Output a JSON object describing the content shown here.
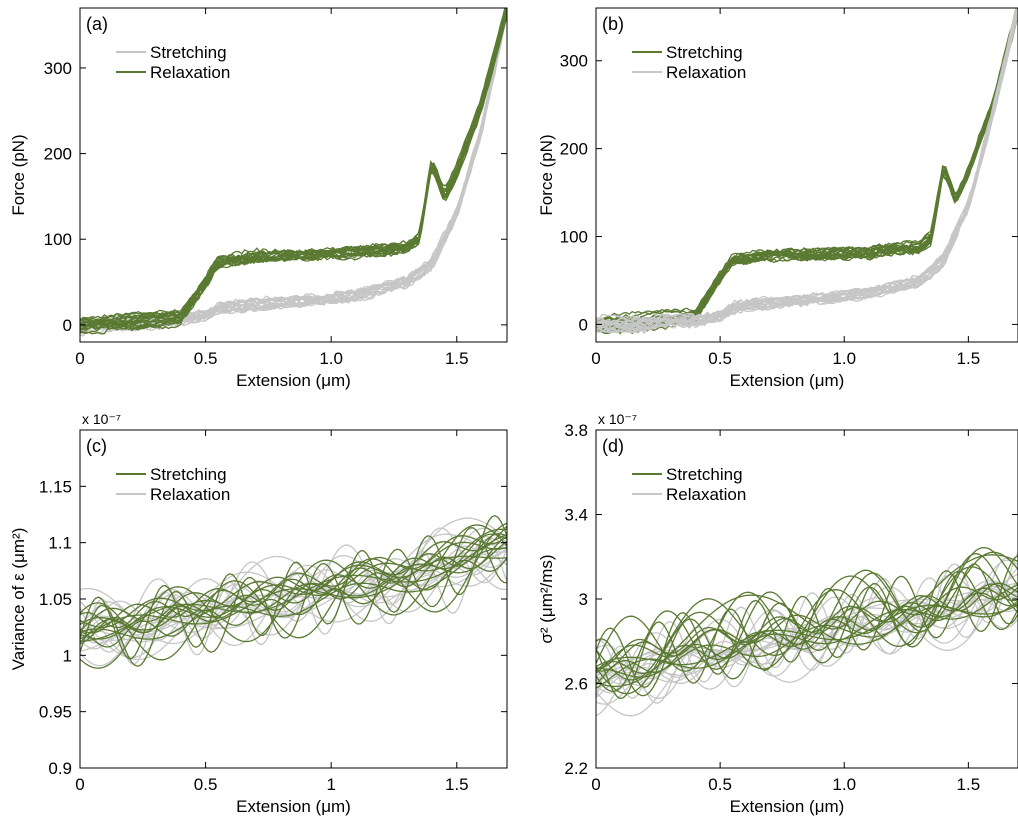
{
  "colors": {
    "green": "#5a7a32",
    "gray": "#c6c6c6",
    "axis": "#000000"
  },
  "chart_data": [
    {
      "panel": "(a)",
      "type": "line",
      "xlabel": "Extension (μm)",
      "ylabel": "Force (pN)",
      "xlim": [
        0,
        1.7
      ],
      "ylim": [
        -20,
        370
      ],
      "xticks": [
        0,
        0.5,
        1.0,
        1.5
      ],
      "xtick_labels": [
        "0",
        "0.5",
        "1.0",
        "1.5"
      ],
      "yticks": [
        0,
        100,
        200,
        300
      ],
      "ytick_labels": [
        "0",
        "100",
        "200",
        "300"
      ],
      "legend_position": "top-left",
      "series": [
        {
          "name": "Stretching",
          "color": "gray",
          "traces": 20,
          "front": false,
          "x": [
            0,
            0.2,
            0.4,
            0.5,
            0.55,
            0.7,
            0.9,
            1.1,
            1.3,
            1.4,
            1.5,
            1.6,
            1.7
          ],
          "y": [
            0,
            2,
            6,
            12,
            20,
            24,
            28,
            34,
            50,
            70,
            130,
            230,
            370
          ]
        },
        {
          "name": "Relaxation",
          "color": "green",
          "traces": 20,
          "front": true,
          "x": [
            0,
            0.2,
            0.4,
            0.5,
            0.55,
            0.7,
            0.9,
            1.1,
            1.3,
            1.35,
            1.4,
            1.45,
            1.5,
            1.6,
            1.7
          ],
          "y": [
            0,
            3,
            8,
            50,
            75,
            80,
            82,
            85,
            90,
            100,
            190,
            150,
            180,
            260,
            370
          ]
        }
      ]
    },
    {
      "panel": "(b)",
      "type": "line",
      "xlabel": "Extension (μm)",
      "ylabel": "Force (pN)",
      "xlim": [
        0,
        1.7
      ],
      "ylim": [
        -20,
        360
      ],
      "xticks": [
        0,
        0.5,
        1.0,
        1.5
      ],
      "xtick_labels": [
        "0",
        "0.5",
        "1.0",
        "1.5"
      ],
      "yticks": [
        0,
        100,
        200,
        300
      ],
      "ytick_labels": [
        "0",
        "100",
        "200",
        "300"
      ],
      "legend_position": "top-left",
      "series": [
        {
          "name": "Stretching",
          "color": "green",
          "traces": 20,
          "front": false,
          "x": [
            0,
            0.2,
            0.4,
            0.5,
            0.55,
            0.7,
            0.9,
            1.1,
            1.3,
            1.35,
            1.4,
            1.45,
            1.5,
            1.6,
            1.7
          ],
          "y": [
            0,
            3,
            10,
            55,
            75,
            78,
            80,
            82,
            88,
            100,
            180,
            140,
            170,
            250,
            360
          ]
        },
        {
          "name": "Relaxation",
          "color": "gray",
          "traces": 20,
          "front": true,
          "x": [
            0,
            0.2,
            0.4,
            0.5,
            0.55,
            0.7,
            0.9,
            1.1,
            1.3,
            1.4,
            1.5,
            1.6,
            1.7
          ],
          "y": [
            0,
            2,
            6,
            12,
            20,
            25,
            30,
            35,
            50,
            72,
            135,
            240,
            360
          ]
        }
      ]
    },
    {
      "panel": "(c)",
      "type": "line",
      "xlabel": "Extension (μm)",
      "ylabel": "Variance of ε (μm²)",
      "multiplier": "x 10⁻⁷",
      "xlim": [
        0,
        1.7
      ],
      "ylim": [
        0.9,
        1.2
      ],
      "xticks": [
        0,
        0.5,
        1,
        1.5
      ],
      "xtick_labels": [
        "0",
        "0.5",
        "1",
        "1.5"
      ],
      "yticks": [
        0.9,
        0.95,
        1,
        1.05,
        1.1,
        1.15
      ],
      "ytick_labels": [
        "0.9",
        "0.95",
        "1",
        "1.05",
        "1.1",
        "1.15"
      ],
      "legend_position": "top-left",
      "series": [
        {
          "name": "Stretching",
          "color": "green",
          "traces": 16,
          "front": true,
          "x": [
            0,
            0.25,
            0.5,
            0.75,
            1.0,
            1.25,
            1.5,
            1.7
          ],
          "y": [
            1.02,
            1.03,
            1.04,
            1.05,
            1.06,
            1.07,
            1.085,
            1.1
          ]
        },
        {
          "name": "Relaxation",
          "color": "gray",
          "traces": 16,
          "front": false,
          "x": [
            0,
            0.25,
            0.5,
            0.75,
            1.0,
            1.25,
            1.5,
            1.7
          ],
          "y": [
            1.025,
            1.03,
            1.04,
            1.05,
            1.06,
            1.07,
            1.08,
            1.095
          ]
        }
      ]
    },
    {
      "panel": "(d)",
      "type": "line",
      "xlabel": "Extension (μm)",
      "ylabel": "σ² (μm²/ms)",
      "multiplier": "x 10⁻⁷",
      "xlim": [
        0,
        1.7
      ],
      "ylim": [
        2.2,
        3.8
      ],
      "xticks": [
        0,
        0.5,
        1.0,
        1.5
      ],
      "xtick_labels": [
        "0",
        "0.5",
        "1.0",
        "1.5"
      ],
      "yticks": [
        2.2,
        2.6,
        3,
        3.4,
        3.8
      ],
      "ytick_labels": [
        "2.2",
        "2.6",
        "3",
        "3.4",
        "3.8"
      ],
      "legend_position": "top-left",
      "series": [
        {
          "name": "Stretching",
          "color": "green",
          "traces": 16,
          "front": true,
          "x": [
            0,
            0.25,
            0.5,
            0.75,
            1.0,
            1.25,
            1.5,
            1.7
          ],
          "y": [
            2.68,
            2.75,
            2.8,
            2.85,
            2.9,
            2.95,
            3.0,
            3.05
          ]
        },
        {
          "name": "Relaxation",
          "color": "gray",
          "traces": 16,
          "front": false,
          "x": [
            0,
            0.25,
            0.5,
            0.75,
            1.0,
            1.25,
            1.5,
            1.7
          ],
          "y": [
            2.6,
            2.68,
            2.74,
            2.8,
            2.86,
            2.92,
            2.98,
            3.05
          ]
        }
      ]
    }
  ]
}
